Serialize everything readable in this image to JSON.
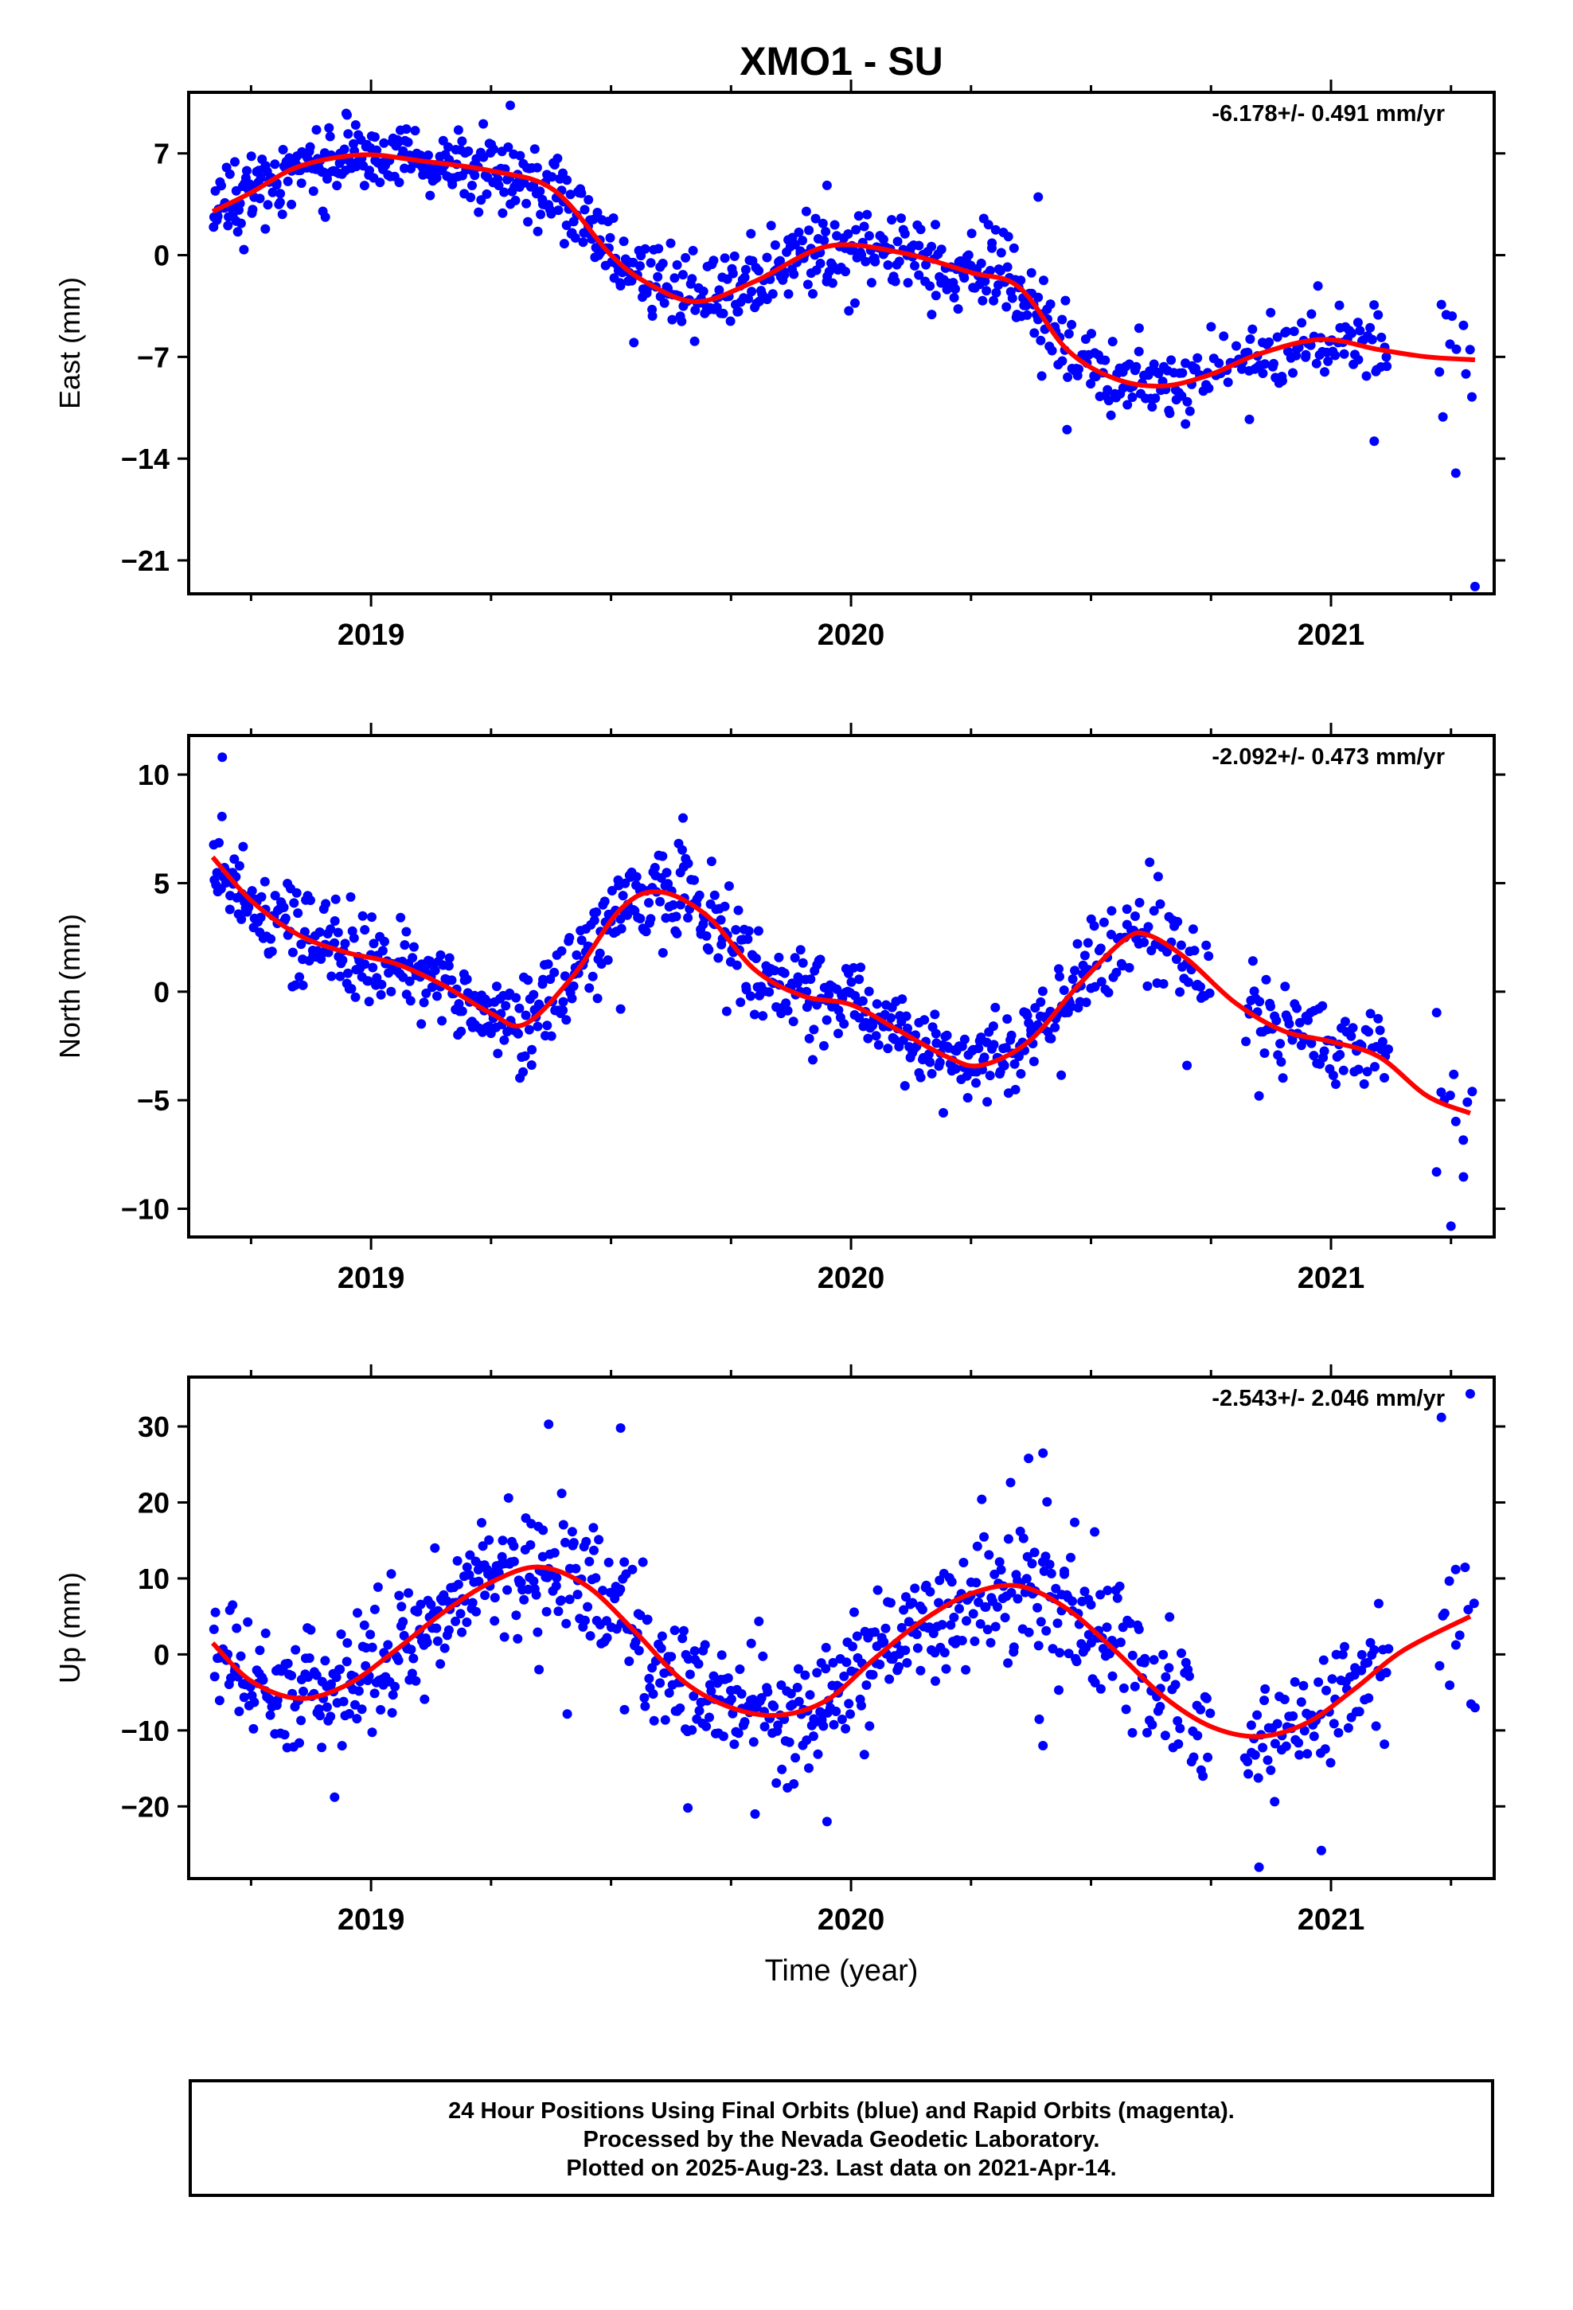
{
  "chart_data": {
    "type": "scatter",
    "title": "XMO1 - SU",
    "xlabel": "Time (year)",
    "xlim": [
      2018.62,
      2021.34
    ],
    "x_ticks": [
      "2019",
      "2020",
      "2021"
    ],
    "colors": {
      "final_orbits": "#0000ff",
      "model_fit": "#ff0000"
    },
    "panels": [
      {
        "name": "east",
        "ylabel": "East (mm)",
        "ylim": [
          -23.3,
          11.2
        ],
        "y_ticks": [
          7,
          0,
          -7,
          -14,
          -21
        ],
        "y_tick_labels": [
          "7",
          "0",
          "−7",
          "−14",
          "−21"
        ],
        "velocity_label": "-6.178+/- 0.491 mm/yr",
        "fit": {
          "x": [
            2018.67,
            2018.75,
            2018.85,
            2018.98,
            2019.1,
            2019.25,
            2019.38,
            2019.5,
            2019.58,
            2019.68,
            2019.8,
            2019.95,
            2020.1,
            2020.25,
            2020.35,
            2020.45,
            2020.55,
            2020.65,
            2020.75,
            2020.85,
            2020.98,
            2021.1,
            2021.2,
            2021.3
          ],
          "y": [
            3.0,
            4.3,
            6.1,
            6.9,
            6.5,
            5.8,
            4.5,
            0.0,
            -2.0,
            -3.2,
            -1.8,
            0.6,
            0.2,
            -1.2,
            -2.2,
            -6.5,
            -8.5,
            -9.0,
            -8.2,
            -6.8,
            -5.8,
            -6.5,
            -7.0,
            -7.2
          ]
        },
        "points": [
          {
            "start": 2018.67,
            "end": 2018.78,
            "n": 45,
            "spread": 1.2
          },
          {
            "start": 2018.78,
            "end": 2018.98,
            "n": 85,
            "spread": 1.2
          },
          {
            "start": 2018.98,
            "end": 2019.2,
            "n": 85,
            "spread": 1.3
          },
          {
            "start": 2019.2,
            "end": 2019.45,
            "n": 95,
            "spread": 1.3
          },
          {
            "start": 2019.45,
            "end": 2019.7,
            "n": 90,
            "spread": 1.3
          },
          {
            "start": 2019.7,
            "end": 2019.95,
            "n": 90,
            "spread": 1.3
          },
          {
            "start": 2019.95,
            "end": 2020.2,
            "n": 85,
            "spread": 1.3
          },
          {
            "start": 2020.2,
            "end": 2020.42,
            "n": 80,
            "spread": 1.4
          },
          {
            "start": 2020.42,
            "end": 2020.72,
            "n": 90,
            "spread": 1.4
          },
          {
            "start": 2020.72,
            "end": 2020.82,
            "n": 20,
            "spread": 1.4
          },
          {
            "start": 2020.82,
            "end": 2021.12,
            "n": 80,
            "spread": 1.3
          },
          {
            "start": 2021.22,
            "end": 2021.3,
            "n": 10,
            "spread": 1.8
          }
        ],
        "outliers": [
          {
            "x": 2019.29,
            "y": 10.3
          },
          {
            "x": 2020.45,
            "y": -12.0
          },
          {
            "x": 2021.09,
            "y": -12.8
          },
          {
            "x": 2021.26,
            "y": -15.0
          },
          {
            "x": 2021.3,
            "y": -22.8
          },
          {
            "x": 2021.23,
            "y": -3.4
          },
          {
            "x": 2020.39,
            "y": 4.0
          },
          {
            "x": 2019.95,
            "y": 4.8
          },
          {
            "x": 2020.83,
            "y": -11.3
          }
        ]
      },
      {
        "name": "north",
        "ylabel": "North (mm)",
        "ylim": [
          -11.3,
          11.8
        ],
        "y_ticks": [
          10,
          5,
          0,
          -5,
          -10
        ],
        "y_tick_labels": [
          "10",
          "5",
          "0",
          "−5",
          "−10"
        ],
        "velocity_label": "-2.092+/- 0.473 mm/yr",
        "fit": {
          "x": [
            2018.67,
            2018.75,
            2018.85,
            2018.95,
            2019.05,
            2019.15,
            2019.25,
            2019.32,
            2019.42,
            2019.52,
            2019.6,
            2019.7,
            2019.8,
            2019.9,
            2020.0,
            2020.1,
            2020.2,
            2020.27,
            2020.37,
            2020.47,
            2020.57,
            2020.62,
            2020.7,
            2020.8,
            2020.9,
            2021.0,
            2021.1,
            2021.2,
            2021.29
          ],
          "y": [
            6.2,
            4.2,
            2.6,
            1.8,
            1.3,
            0.3,
            -1.0,
            -1.5,
            0.7,
            3.8,
            4.6,
            3.5,
            1.0,
            -0.2,
            -0.6,
            -1.8,
            -3.0,
            -3.4,
            -2.3,
            0.2,
            2.4,
            2.6,
            1.5,
            -0.5,
            -1.8,
            -2.3,
            -3.0,
            -4.8,
            -5.6
          ]
        },
        "points": [
          {
            "start": 2018.67,
            "end": 2018.8,
            "n": 50,
            "spread": 1.0
          },
          {
            "start": 2018.8,
            "end": 2019.05,
            "n": 95,
            "spread": 1.0
          },
          {
            "start": 2019.05,
            "end": 2019.3,
            "n": 95,
            "spread": 1.0
          },
          {
            "start": 2019.3,
            "end": 2019.5,
            "n": 80,
            "spread": 1.1
          },
          {
            "start": 2019.5,
            "end": 2019.75,
            "n": 95,
            "spread": 1.1
          },
          {
            "start": 2019.75,
            "end": 2020.0,
            "n": 95,
            "spread": 1.0
          },
          {
            "start": 2020.0,
            "end": 2020.25,
            "n": 90,
            "spread": 1.0
          },
          {
            "start": 2020.25,
            "end": 2020.5,
            "n": 90,
            "spread": 1.0
          },
          {
            "start": 2020.5,
            "end": 2020.75,
            "n": 70,
            "spread": 1.2
          },
          {
            "start": 2020.82,
            "end": 2021.12,
            "n": 85,
            "spread": 1.0
          },
          {
            "start": 2021.22,
            "end": 2021.3,
            "n": 10,
            "spread": 1.4
          }
        ],
        "outliers": [
          {
            "x": 2018.69,
            "y": 10.8
          },
          {
            "x": 2019.52,
            "y": -0.8
          },
          {
            "x": 2020.64,
            "y": 5.3
          },
          {
            "x": 2021.25,
            "y": -10.8
          },
          {
            "x": 2021.22,
            "y": -8.3
          },
          {
            "x": 2020.85,
            "y": -4.8
          },
          {
            "x": 2020.7,
            "y": -3.4
          },
          {
            "x": 2019.65,
            "y": 8.0
          }
        ]
      },
      {
        "name": "up",
        "ylabel": "Up (mm)",
        "ylim": [
          -29.5,
          36.5
        ],
        "y_ticks": [
          30,
          20,
          10,
          0,
          -10,
          -20
        ],
        "y_tick_labels": [
          "30",
          "20",
          "10",
          "0",
          "−10",
          "−20"
        ],
        "velocity_label": "-2.543+/- 2.046 mm/yr",
        "fit": {
          "x": [
            2018.67,
            2018.75,
            2018.85,
            2018.95,
            2019.05,
            2019.15,
            2019.25,
            2019.35,
            2019.45,
            2019.55,
            2019.65,
            2019.75,
            2019.85,
            2019.95,
            2020.05,
            2020.15,
            2020.25,
            2020.35,
            2020.45,
            2020.55,
            2020.65,
            2020.75,
            2020.85,
            2020.95,
            2021.05,
            2021.15,
            2021.29
          ],
          "y": [
            1.5,
            -3.5,
            -5.8,
            -4.0,
            0.5,
            5.5,
            9.5,
            11.5,
            9.0,
            3.0,
            -3.5,
            -7.0,
            -8.0,
            -6.0,
            -0.5,
            4.5,
            8.0,
            9.0,
            6.0,
            0.5,
            -5.5,
            -9.5,
            -10.8,
            -9.0,
            -4.5,
            0.5,
            5.0
          ]
        },
        "points": [
          {
            "start": 2018.67,
            "end": 2018.8,
            "n": 45,
            "spread": 4.0
          },
          {
            "start": 2018.8,
            "end": 2019.05,
            "n": 95,
            "spread": 4.0
          },
          {
            "start": 2019.05,
            "end": 2019.3,
            "n": 95,
            "spread": 4.2
          },
          {
            "start": 2019.3,
            "end": 2019.55,
            "n": 90,
            "spread": 4.5
          },
          {
            "start": 2019.55,
            "end": 2019.8,
            "n": 90,
            "spread": 4.2
          },
          {
            "start": 2019.8,
            "end": 2020.05,
            "n": 90,
            "spread": 4.0
          },
          {
            "start": 2020.05,
            "end": 2020.3,
            "n": 90,
            "spread": 4.2
          },
          {
            "start": 2020.3,
            "end": 2020.55,
            "n": 90,
            "spread": 4.5
          },
          {
            "start": 2020.55,
            "end": 2020.75,
            "n": 55,
            "spread": 4.2
          },
          {
            "start": 2020.82,
            "end": 2021.12,
            "n": 85,
            "spread": 4.0
          },
          {
            "start": 2021.22,
            "end": 2021.3,
            "n": 12,
            "spread": 4.5
          }
        ],
        "outliers": [
          {
            "x": 2019.37,
            "y": 30.3
          },
          {
            "x": 2019.52,
            "y": 29.8
          },
          {
            "x": 2021.29,
            "y": 34.3
          },
          {
            "x": 2021.23,
            "y": 31.2
          },
          {
            "x": 2020.85,
            "y": -28.0
          },
          {
            "x": 2020.98,
            "y": -25.8
          },
          {
            "x": 2019.95,
            "y": -22.0
          },
          {
            "x": 2019.8,
            "y": -21.0
          },
          {
            "x": 2019.66,
            "y": -20.2
          },
          {
            "x": 2021.3,
            "y": -7.0
          },
          {
            "x": 2020.4,
            "y": 26.5
          },
          {
            "x": 2020.37,
            "y": 25.8
          },
          {
            "x": 2019.35,
            "y": -2.0
          },
          {
            "x": 2020.4,
            "y": -12.0
          }
        ]
      }
    ],
    "legend_lines": [
      "24 Hour Positions Using Final Orbits (blue) and Rapid Orbits (magenta).",
      "Processed by the Nevada Geodetic Laboratory.",
      "Plotted on 2025-Aug-23. Last data on 2021-Apr-14."
    ]
  }
}
